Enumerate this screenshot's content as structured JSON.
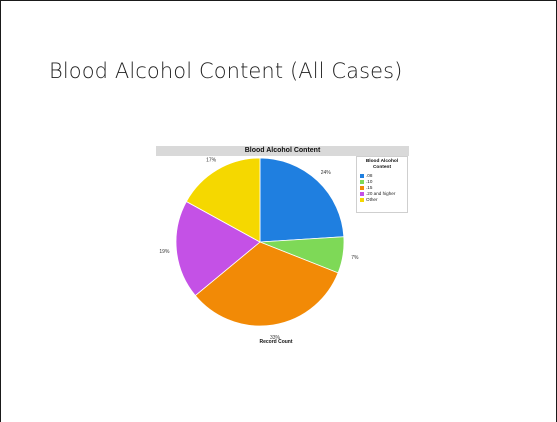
{
  "slide": {
    "title": "Blood Alcohol Content (All Cases)"
  },
  "chart_data": {
    "type": "pie",
    "title": "Blood Alcohol Content",
    "footer_label": "Record Count",
    "legend_title": "Blood Alcohol Content",
    "legend_placement": "top-right",
    "slices": [
      {
        "label": ".08",
        "value": 24,
        "display": "24%",
        "color": "#1f7fe0"
      },
      {
        "label": ".10",
        "value": 7,
        "display": "7%",
        "color": "#7ed957"
      },
      {
        "label": ".15",
        "value": 33,
        "display": "33%",
        "color": "#f28a06"
      },
      {
        "label": ".20 and higher",
        "value": 19,
        "display": "19%",
        "color": "#c451e6"
      },
      {
        "label": "Other",
        "value": 17,
        "display": "17%",
        "color": "#f5d800"
      }
    ]
  }
}
